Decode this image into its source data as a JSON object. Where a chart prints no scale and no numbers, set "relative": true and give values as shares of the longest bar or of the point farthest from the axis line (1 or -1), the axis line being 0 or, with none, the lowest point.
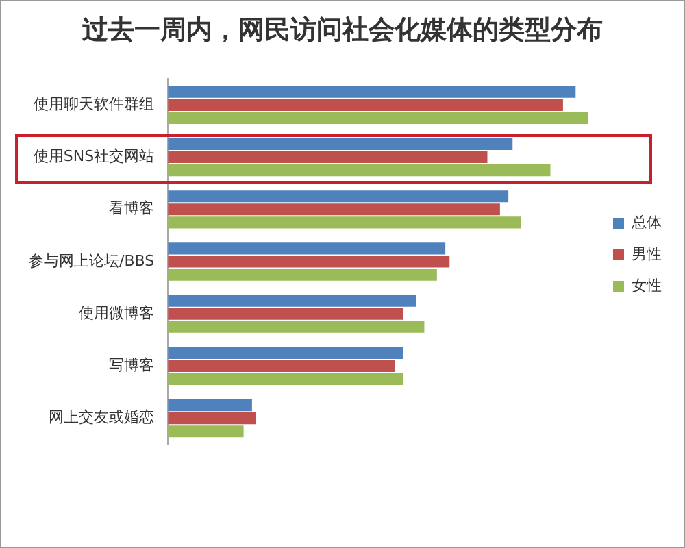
{
  "chart_data": {
    "type": "bar",
    "orientation": "horizontal",
    "relative": true,
    "title": "过去一周内，网民访问社会化媒体的类型分布",
    "categories": [
      "使用聊天软件群组",
      "使用SNS社交网站",
      "看博客",
      "参与网上论坛/BBS",
      "使用微博客",
      "写博客",
      "网上交友或婚恋"
    ],
    "series": [
      {
        "name": "总体",
        "color": "#4f81bd",
        "values": [
          0.97,
          0.82,
          0.81,
          0.66,
          0.59,
          0.56,
          0.2
        ]
      },
      {
        "name": "男性",
        "color": "#c0504d",
        "values": [
          0.94,
          0.76,
          0.79,
          0.67,
          0.56,
          0.54,
          0.21
        ]
      },
      {
        "name": "女性",
        "color": "#9bbb59",
        "values": [
          1,
          0.91,
          0.84,
          0.64,
          0.61,
          0.56,
          0.18
        ]
      }
    ],
    "legend": "right",
    "grid": false,
    "tick_labels": "y"
  }
}
